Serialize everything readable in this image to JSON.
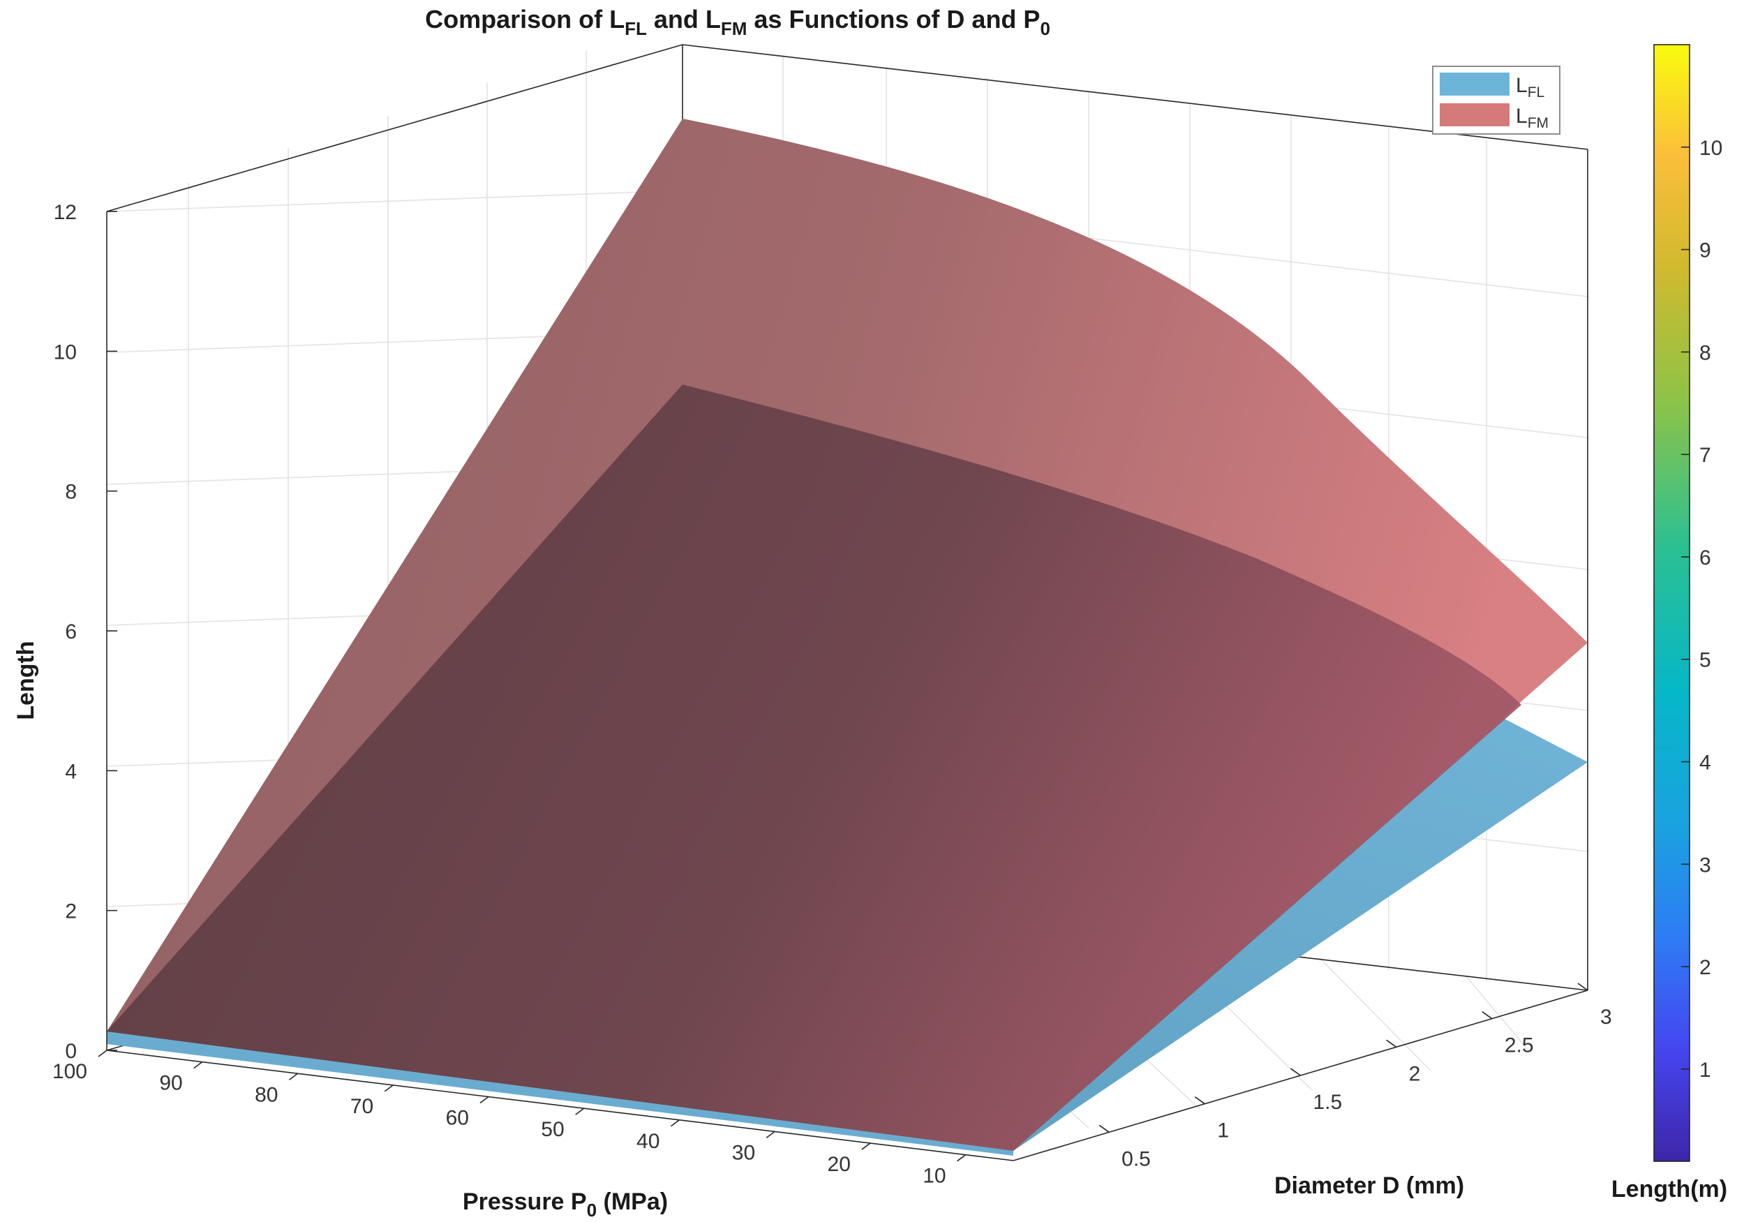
{
  "chart_data": {
    "type": "surface3d",
    "title": "Comparison of L_FL and L_FM as Functions of D and P_0",
    "title_parts": {
      "t1": "Comparison of L",
      "s1": "FL",
      "t2": " and L",
      "s2": "FM",
      "t3": " as Functions of D and P",
      "s3": "0"
    },
    "xlabel": "Pressure P0 (MPa)",
    "xlabel_parts": {
      "t1": "Pressure P",
      "s1": "0",
      "t2": " (MPa)"
    },
    "ylabel": "Diameter D (mm)",
    "zlabel": "Length",
    "colorbar_label": "Length(m)",
    "x_ticks": [
      100,
      90,
      80,
      70,
      60,
      50,
      40,
      30,
      20,
      10
    ],
    "y_ticks": [
      0.5,
      1,
      1.5,
      2,
      2.5,
      3
    ],
    "z_ticks": [
      0,
      2,
      4,
      6,
      8,
      10,
      12
    ],
    "colorbar_ticks": [
      1,
      2,
      3,
      4,
      5,
      6,
      7,
      8,
      9,
      10
    ],
    "xlim": [
      5,
      100
    ],
    "ylim": [
      0,
      3
    ],
    "zlim": [
      0,
      12
    ],
    "colorbar_range": [
      0.1,
      11
    ],
    "series": [
      {
        "name": "L_FL",
        "label": "L",
        "sub": "FL",
        "color": "#6db5d8",
        "corners": {
          "P100_D0": 0.25,
          "P5_D0": 0.05,
          "P5_D3": 4.0,
          "P100_D3": 9.5
        }
      },
      {
        "name": "L_FM",
        "label": "L",
        "sub": "FM",
        "color": "#d47a7a",
        "corners": {
          "P100_D0": 0.3,
          "P5_D0": 0.05,
          "P5_D3": 5.8,
          "P100_D3": 13.3
        }
      }
    ],
    "legend_position": "top-right",
    "grid": true
  },
  "colors": {
    "fl_surface": "#6db5d8",
    "fm_surface": "#c9787a",
    "fm_dark": "#5b3940",
    "axis": "#262626",
    "grid": "#e3e3e3"
  }
}
